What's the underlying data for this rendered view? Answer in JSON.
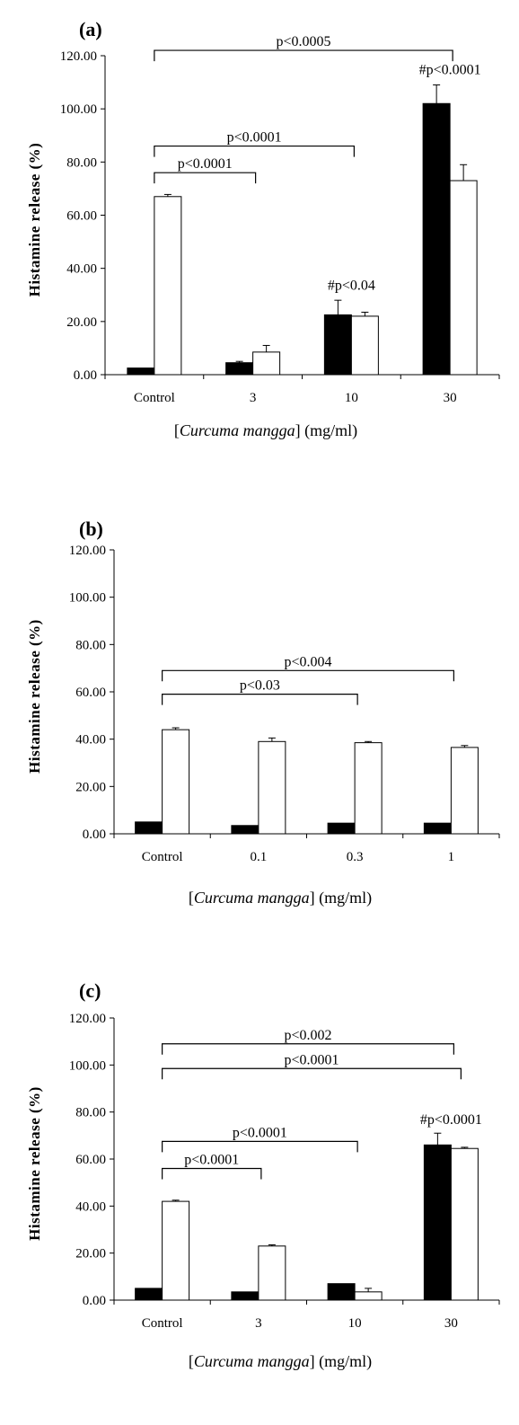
{
  "chart_data": [
    {
      "panel": "(a)",
      "type": "bar",
      "categories": [
        "Control",
        "3",
        "10",
        "30"
      ],
      "series": [
        {
          "color": "#000000",
          "values": [
            2.5,
            4.5,
            22.5,
            102
          ],
          "errors": [
            0,
            0.5,
            5.5,
            7
          ]
        },
        {
          "color": "#ffffff",
          "values": [
            67,
            8.5,
            22,
            73
          ],
          "errors": [
            0.8,
            2.5,
            1.5,
            6
          ]
        }
      ],
      "ylabel": "Histamine release (%)",
      "xlabel_prefix": "[",
      "xlabel_italic": "Curcuma mangga",
      "xlabel_suffix": "] (mg/ml)",
      "yticks": [
        "0.00",
        "20.00",
        "40.00",
        "60.00",
        "80.00",
        "100.00",
        "120.00"
      ],
      "ylim": [
        0,
        120
      ],
      "brackets": [
        {
          "from": 0,
          "to": 3,
          "y": 122,
          "label": "p<0.0005"
        },
        {
          "from": 0,
          "to": 2,
          "y": 86,
          "label": "p<0.0001"
        },
        {
          "from": 0,
          "to": 1,
          "y": 76,
          "label": "p<0.0001"
        }
      ],
      "annotations": [
        {
          "category": 2,
          "y": 32,
          "label": "#p<0.04"
        },
        {
          "category": 3,
          "y": 113,
          "label": "#p<0.0001"
        }
      ]
    },
    {
      "panel": "(b)",
      "type": "bar",
      "categories": [
        "Control",
        "0.1",
        "0.3",
        "1"
      ],
      "series": [
        {
          "color": "#000000",
          "values": [
            5,
            3.5,
            4.5,
            4.5
          ],
          "errors": [
            0,
            0,
            0,
            0
          ]
        },
        {
          "color": "#ffffff",
          "values": [
            44,
            39,
            38.5,
            36.5
          ],
          "errors": [
            0.8,
            1.5,
            0.5,
            0.8
          ]
        }
      ],
      "ylabel": "Histamine release (%)",
      "xlabel_prefix": "[",
      "xlabel_italic": "Curcuma mangga",
      "xlabel_suffix": "] (mg/ml)",
      "yticks": [
        "0.00",
        "20.00",
        "40.00",
        "60.00",
        "80.00",
        "100.00",
        "120.00"
      ],
      "ylim": [
        0,
        120
      ],
      "brackets": [
        {
          "from": 0,
          "to": 3,
          "y": 69,
          "label": "p<0.004"
        },
        {
          "from": 0,
          "to": 2,
          "y": 59,
          "label": "p<0.03"
        }
      ],
      "annotations": []
    },
    {
      "panel": "(c)",
      "type": "bar",
      "categories": [
        "Control",
        "3",
        "10",
        "30"
      ],
      "series": [
        {
          "color": "#000000",
          "values": [
            5,
            3.5,
            7,
            66
          ],
          "errors": [
            0,
            0,
            0,
            5
          ]
        },
        {
          "color": "#ffffff",
          "values": [
            42,
            23,
            3.5,
            64.5
          ],
          "errors": [
            0.5,
            0.5,
            1.5,
            0.5
          ]
        }
      ],
      "ylabel": "Histamine release (%)",
      "xlabel_prefix": "[",
      "xlabel_italic": "Curcuma mangga",
      "xlabel_suffix": "] (mg/ml)",
      "yticks": [
        "0.00",
        "20.00",
        "40.00",
        "60.00",
        "80.00",
        "100.00",
        "120.00"
      ],
      "ylim": [
        0,
        120
      ],
      "brackets": [
        {
          "from": 0,
          "to": 3,
          "y": 109,
          "label": "p<0.002"
        },
        {
          "from": 0,
          "to": 3,
          "y": 98.5,
          "label": "p<0.0001",
          "to_offset": 1
        },
        {
          "from": 0,
          "to": 2,
          "y": 67.5,
          "label": "p<0.0001"
        },
        {
          "from": 0,
          "to": 1,
          "y": 56,
          "label": "p<0.0001"
        }
      ],
      "annotations": [
        {
          "category": 3,
          "y": 75,
          "label": "#p<0.0001"
        }
      ]
    }
  ]
}
